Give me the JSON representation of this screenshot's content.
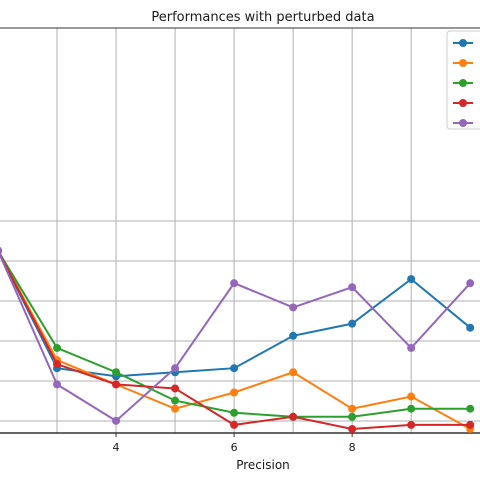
{
  "chart_data": {
    "type": "line",
    "title": "Performances with perturbed data",
    "xlabel": "Precision",
    "ylabel": "",
    "xlim": [
      2.0,
      10.2
    ],
    "ylim": [
      0,
      10
    ],
    "x_ticks": [
      4,
      6,
      8
    ],
    "y_gridlines": [
      1.0,
      3.0,
      5.0,
      7.0,
      9.0,
      11.0
    ],
    "legend_position": "top-right",
    "series": [
      {
        "name": "",
        "color": "#1f77b4",
        "x": [
          2,
          3,
          4,
          5,
          6,
          7,
          8,
          9,
          10
        ],
        "y": [
          4.5,
          1.6,
          1.4,
          1.5,
          1.6,
          2.4,
          2.7,
          3.8,
          2.6
        ]
      },
      {
        "name": "",
        "color": "#ff7f0e",
        "x": [
          2,
          3,
          4,
          5,
          6,
          7,
          8,
          9,
          10
        ],
        "y": [
          4.5,
          1.8,
          1.2,
          0.6,
          1.0,
          1.5,
          0.6,
          0.9,
          0.1
        ]
      },
      {
        "name": "",
        "color": "#2ca02c",
        "x": [
          2,
          3,
          4,
          5,
          6,
          7,
          8,
          9,
          10
        ],
        "y": [
          4.5,
          2.1,
          1.5,
          0.8,
          0.5,
          0.4,
          0.4,
          0.6,
          0.6
        ]
      },
      {
        "name": "",
        "color": "#d62728",
        "x": [
          2,
          3,
          4,
          5,
          6,
          7,
          8,
          9,
          10
        ],
        "y": [
          4.5,
          1.7,
          1.2,
          1.1,
          0.2,
          0.4,
          0.1,
          0.2,
          0.2
        ]
      },
      {
        "name": "",
        "color": "#9467bd",
        "x": [
          2,
          3,
          4,
          5,
          6,
          7,
          8,
          9,
          10
        ],
        "y": [
          4.5,
          1.2,
          0.3,
          1.6,
          3.7,
          3.1,
          3.6,
          2.1,
          3.7
        ]
      }
    ]
  }
}
